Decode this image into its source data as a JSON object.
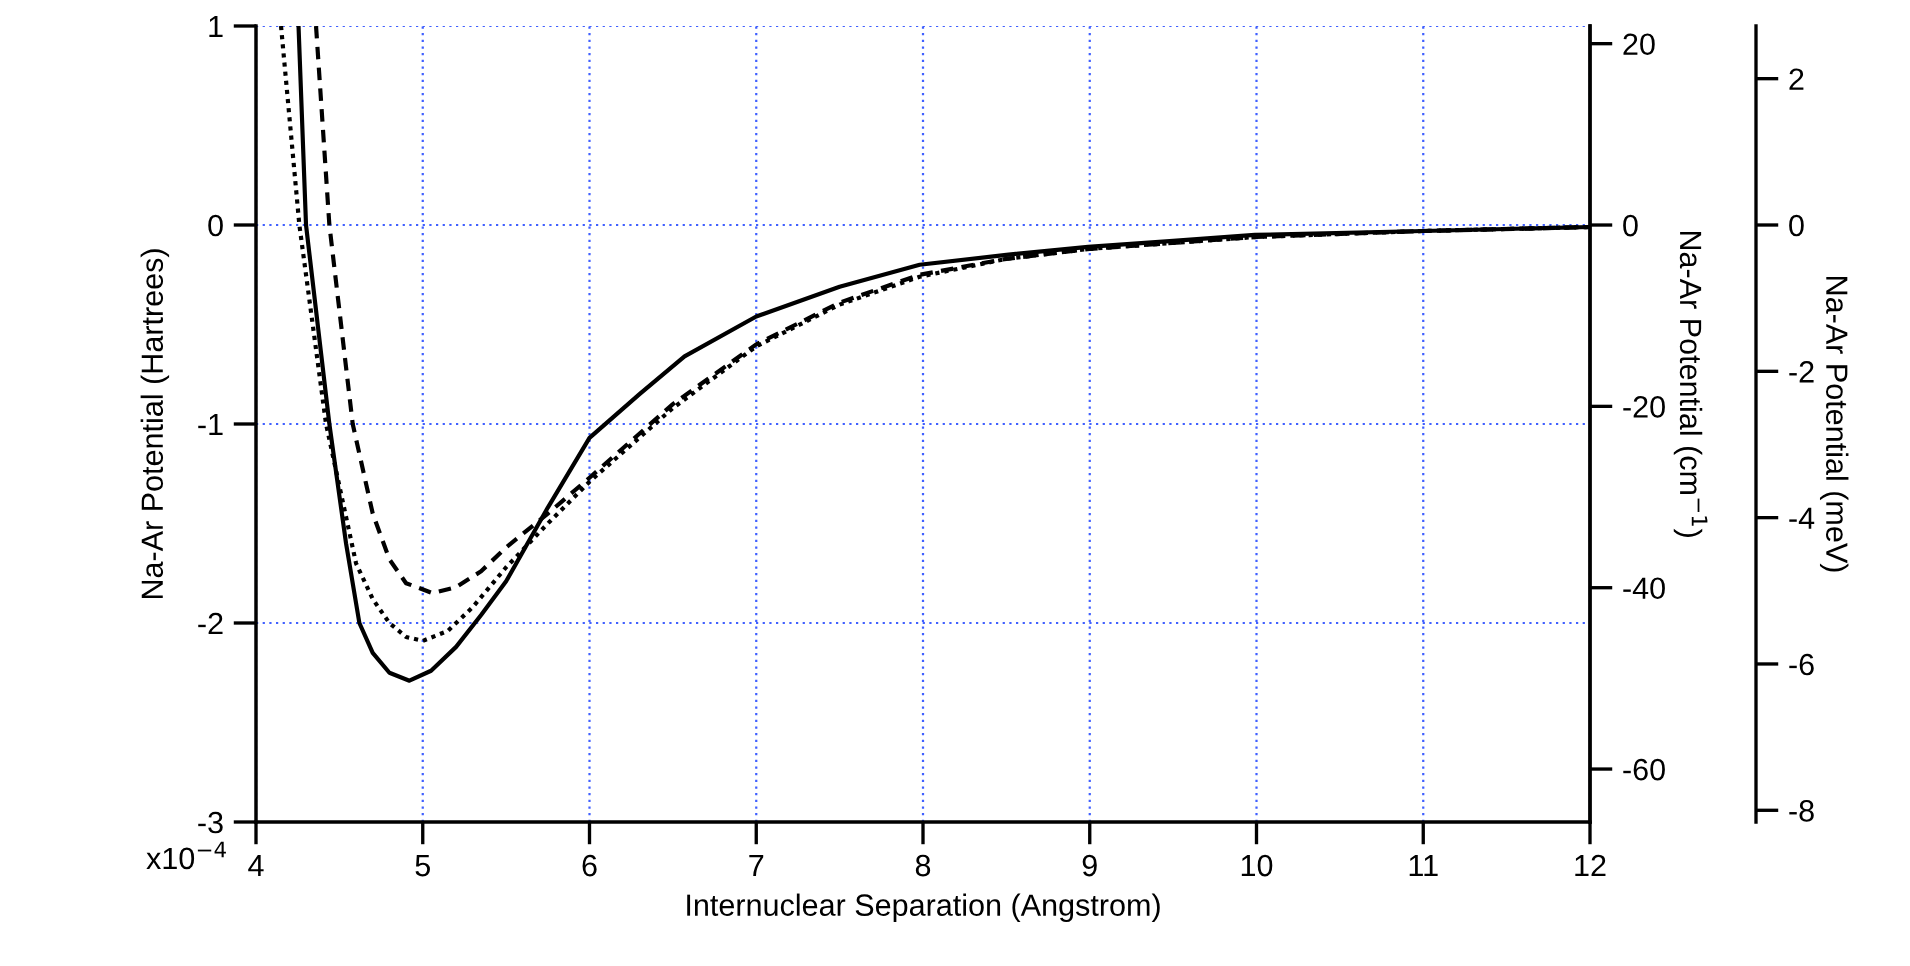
{
  "chart_data": {
    "type": "line",
    "xlabel": "Internuclear Separation (Angstrom)",
    "ylabel": "Na-Ar Potential (Hartrees)",
    "y2label": "Na-Ar Potential (cm$^{−1}$)",
    "y3label": "Na-Ar Potential (meV)",
    "xlim": [
      4,
      12
    ],
    "xticks": [
      4,
      5,
      6,
      7,
      8,
      9,
      10,
      11,
      12
    ],
    "ylim": [
      -3,
      1
    ],
    "yticks": [
      1,
      0,
      -1,
      -2,
      -3
    ],
    "annotations": [
      "x10$^{−4}$"
    ],
    "y2lim": [
      -65.84,
      21.95
    ],
    "y2ticks": [
      20,
      0,
      -20,
      -40,
      -60
    ],
    "y3lim": [
      -8.16,
      2.72
    ],
    "y3ticks": [
      2,
      0,
      -2,
      -4,
      -6,
      -8
    ],
    "grid": true,
    "series": [
      {
        "color": "#000000",
        "line_style": "solid",
        "x": [
          4.255,
          4.3,
          4.44,
          4.54,
          4.62,
          4.7,
          4.8,
          4.92,
          5.05,
          5.2,
          5.35,
          5.5,
          5.75,
          6.0,
          6.3,
          6.57,
          7.0,
          7.5,
          7.98,
          8.5,
          8.99,
          9.5,
          9.99,
          11.0,
          12.0
        ],
        "values": [
          1.0,
          0.0,
          -1.0,
          -1.6,
          -2.0,
          -2.15,
          -2.25,
          -2.29,
          -2.24,
          -2.12,
          -1.96,
          -1.79,
          -1.42,
          -1.07,
          -0.85,
          -0.66,
          -0.46,
          -0.31,
          -0.2,
          -0.15,
          -0.11,
          -0.08,
          -0.05,
          -0.03,
          -0.01
        ]
      },
      {
        "color": "#000000",
        "line_style": "dashed",
        "x": [
          4.36,
          4.44,
          4.58,
          4.7,
          4.8,
          4.9,
          5.06,
          5.2,
          5.35,
          5.5,
          5.75,
          6.0,
          6.5,
          7.0,
          7.5,
          7.98,
          8.5,
          9.0,
          10.0,
          11.0,
          12.0
        ],
        "values": [
          1.0,
          0.0,
          -1.0,
          -1.45,
          -1.68,
          -1.8,
          -1.85,
          -1.82,
          -1.74,
          -1.62,
          -1.45,
          -1.27,
          -0.9,
          -0.6,
          -0.39,
          -0.25,
          -0.17,
          -0.12,
          -0.06,
          -0.03,
          -0.01
        ]
      },
      {
        "color": "#000000",
        "line_style": "dotted",
        "x": [
          4.15,
          4.26,
          4.42,
          4.6,
          4.7,
          4.8,
          4.9,
          5.0,
          5.15,
          5.3,
          5.5,
          5.75,
          6.0,
          6.5,
          7.0,
          7.5,
          7.98,
          8.5,
          9.0,
          10.0,
          11.0,
          12.0
        ],
        "values": [
          1.0,
          0.0,
          -1.0,
          -1.7,
          -1.88,
          -2.0,
          -2.07,
          -2.09,
          -2.04,
          -1.92,
          -1.72,
          -1.5,
          -1.29,
          -0.92,
          -0.61,
          -0.4,
          -0.26,
          -0.17,
          -0.12,
          -0.06,
          -0.03,
          -0.01
        ]
      }
    ]
  }
}
